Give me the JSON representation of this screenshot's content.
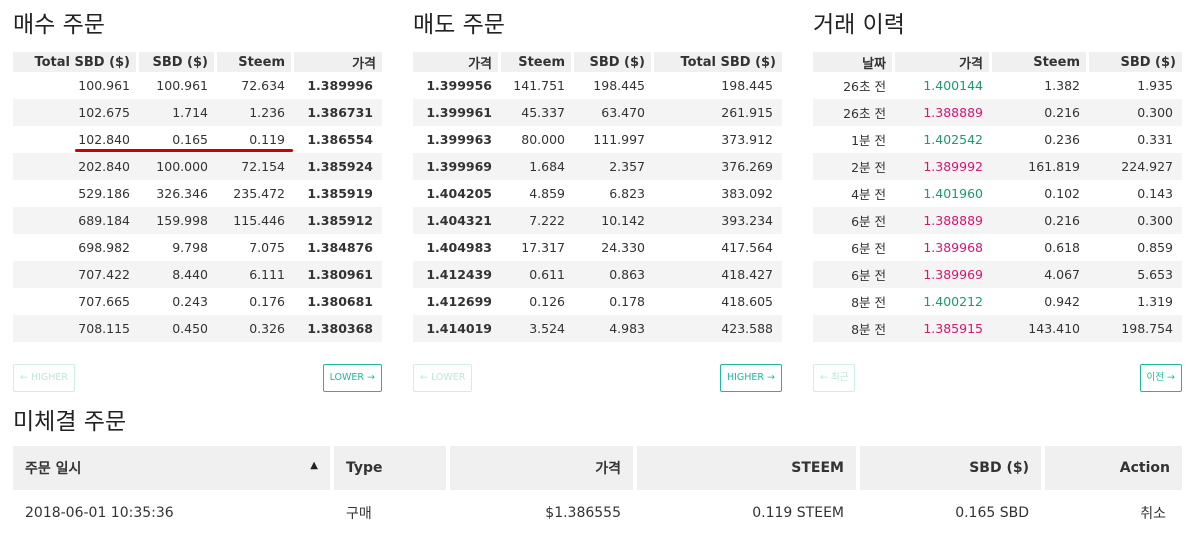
{
  "buy": {
    "title": "매수 주문",
    "headers": [
      "Total SBD ($)",
      "SBD ($)",
      "Steem",
      "가격"
    ],
    "rows": [
      [
        "100.961",
        "100.961",
        "72.634",
        "1.389996"
      ],
      [
        "102.675",
        "1.714",
        "1.236",
        "1.386731"
      ],
      [
        "102.840",
        "0.165",
        "0.119",
        "1.386554"
      ],
      [
        "202.840",
        "100.000",
        "72.154",
        "1.385924"
      ],
      [
        "529.186",
        "326.346",
        "235.472",
        "1.385919"
      ],
      [
        "689.184",
        "159.998",
        "115.446",
        "1.385912"
      ],
      [
        "698.982",
        "9.798",
        "7.075",
        "1.384876"
      ],
      [
        "707.422",
        "8.440",
        "6.111",
        "1.380961"
      ],
      [
        "707.665",
        "0.243",
        "0.176",
        "1.380681"
      ],
      [
        "708.115",
        "0.450",
        "0.326",
        "1.380368"
      ]
    ],
    "prev_label": "← HIGHER",
    "next_label": "LOWER →"
  },
  "sell": {
    "title": "매도 주문",
    "headers": [
      "가격",
      "Steem",
      "SBD ($)",
      "Total SBD ($)"
    ],
    "rows": [
      [
        "1.399956",
        "141.751",
        "198.445",
        "198.445"
      ],
      [
        "1.399961",
        "45.337",
        "63.470",
        "261.915"
      ],
      [
        "1.399963",
        "80.000",
        "111.997",
        "373.912"
      ],
      [
        "1.399969",
        "1.684",
        "2.357",
        "376.269"
      ],
      [
        "1.404205",
        "4.859",
        "6.823",
        "383.092"
      ],
      [
        "1.404321",
        "7.222",
        "10.142",
        "393.234"
      ],
      [
        "1.404983",
        "17.317",
        "24.330",
        "417.564"
      ],
      [
        "1.412439",
        "0.611",
        "0.863",
        "418.427"
      ],
      [
        "1.412699",
        "0.126",
        "0.178",
        "418.605"
      ],
      [
        "1.414019",
        "3.524",
        "4.983",
        "423.588"
      ]
    ],
    "prev_label": "← LOWER",
    "next_label": "HIGHER →"
  },
  "history": {
    "title": "거래 이력",
    "headers": [
      "날짜",
      "가격",
      "Steem",
      "SBD ($)"
    ],
    "rows": [
      {
        "date": "26초 전",
        "price": "1.400144",
        "steem": "1.382",
        "sbd": "1.935",
        "side": "buy"
      },
      {
        "date": "26초 전",
        "price": "1.388889",
        "steem": "0.216",
        "sbd": "0.300",
        "side": "sell"
      },
      {
        "date": "1분 전",
        "price": "1.402542",
        "steem": "0.236",
        "sbd": "0.331",
        "side": "buy"
      },
      {
        "date": "2분 전",
        "price": "1.389992",
        "steem": "161.819",
        "sbd": "224.927",
        "side": "sell"
      },
      {
        "date": "4분 전",
        "price": "1.401960",
        "steem": "0.102",
        "sbd": "0.143",
        "side": "buy"
      },
      {
        "date": "6분 전",
        "price": "1.388889",
        "steem": "0.216",
        "sbd": "0.300",
        "side": "sell"
      },
      {
        "date": "6분 전",
        "price": "1.389968",
        "steem": "0.618",
        "sbd": "0.859",
        "side": "sell"
      },
      {
        "date": "6분 전",
        "price": "1.389969",
        "steem": "4.067",
        "sbd": "5.653",
        "side": "sell"
      },
      {
        "date": "8분 전",
        "price": "1.400212",
        "steem": "0.942",
        "sbd": "1.319",
        "side": "buy"
      },
      {
        "date": "8분 전",
        "price": "1.385915",
        "steem": "143.410",
        "sbd": "198.754",
        "side": "sell"
      }
    ],
    "prev_label": "← 최근",
    "next_label": "이전 →"
  },
  "open_orders": {
    "title": "미체결 주문",
    "headers": {
      "date": "주문 일시",
      "type": "Type",
      "price": "가격",
      "steem": "STEEM",
      "sbd": "SBD ($)",
      "action": "Action"
    },
    "sort_arrow": "▲",
    "rows": [
      {
        "date": "2018-06-01 10:35:36",
        "type": "구매",
        "price": "$1.386555",
        "steem": "0.119 STEEM",
        "sbd": "0.165 SBD",
        "action": "취소"
      }
    ]
  },
  "colors": {
    "buy_green": "#1a9a6d",
    "sell_pink": "#d4166f",
    "accent": "#1fb89a",
    "highlight_line": "#cc0000"
  }
}
